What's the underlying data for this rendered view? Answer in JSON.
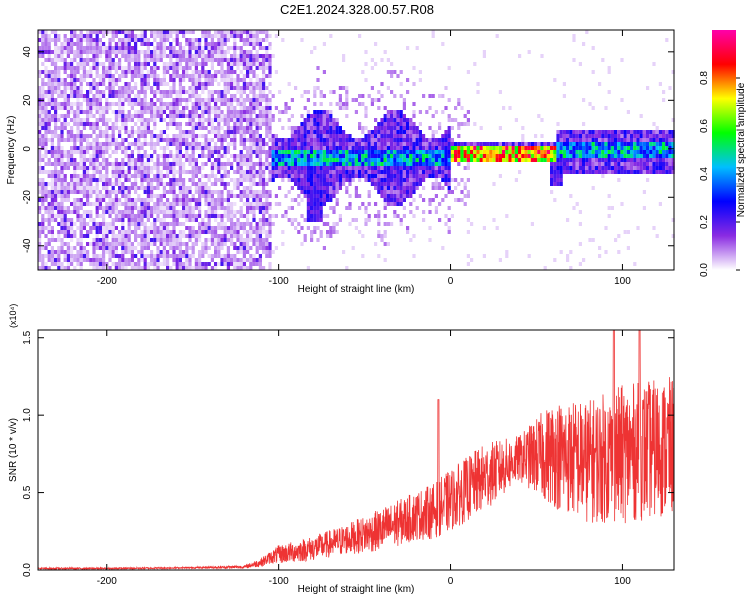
{
  "title": "C2E1.2024.328.00.57.R08",
  "colors": {
    "snr_line": "#ee3333",
    "spec_dense": "#7a2ee8",
    "spec_light": "#cdb6f5",
    "spec_bg": "#ffffff"
  },
  "chart_data": [
    {
      "type": "heatmap",
      "name": "spectrogram",
      "xlabel": "Height of straight line (km)",
      "ylabel": "Frequency (Hz)",
      "xlim": [
        -240,
        130
      ],
      "ylim": [
        -50,
        49
      ],
      "xticks": [
        -200,
        -100,
        0,
        100
      ],
      "yticks": [
        -40,
        -20,
        0,
        20,
        40
      ],
      "colorbar": {
        "label": "Normalized spectral amplitude",
        "range": [
          0.0,
          1.0
        ],
        "ticks": [
          "0.0",
          "0.2",
          "0.4",
          "0.6",
          "0.8"
        ],
        "colormap": [
          "#ffffff",
          "#8a2be2",
          "#0000ff",
          "#00bfff",
          "#00ff00",
          "#ffff00",
          "#ff0000",
          "#ff00aa"
        ]
      },
      "regions": [
        {
          "x": [
            -240,
            -105
          ],
          "freq": [
            -50,
            49
          ],
          "amplitude": 0.15,
          "kind": "noise"
        },
        {
          "x": [
            -105,
            0
          ],
          "freq": [
            -20,
            15
          ],
          "amplitude": 0.3,
          "kind": "signal"
        },
        {
          "x": [
            0,
            60
          ],
          "freq": [
            -3,
            3
          ],
          "amplitude": 0.9,
          "kind": "tone"
        },
        {
          "x": [
            60,
            130
          ],
          "freq": [
            -8,
            8
          ],
          "amplitude": 0.4,
          "kind": "signal"
        }
      ],
      "spikes": [
        {
          "x": -80,
          "freq": -30
        },
        {
          "x": 60,
          "freq": -15
        }
      ]
    },
    {
      "type": "line",
      "name": "snr",
      "xlabel": "Height of straight line (km)",
      "ylabel": "SNR (10 * v/v)",
      "multiplier": "(x10⁴)",
      "xlim": [
        -240,
        130
      ],
      "ylim": [
        0,
        1.55
      ],
      "xticks": [
        -200,
        -100,
        0,
        100
      ],
      "yticks": [
        0.0,
        0.5,
        1.0,
        1.5
      ],
      "ytick_labels": [
        "0.0",
        "0.5",
        "1.0",
        "1.5"
      ],
      "series": [
        {
          "x": [
            -240,
            -200,
            -150,
            -120,
            -110,
            -105,
            -100,
            -80,
            -60,
            -40,
            -20,
            -10,
            0,
            20,
            40,
            60,
            80,
            100,
            130
          ],
          "mean": [
            0.01,
            0.01,
            0.015,
            0.02,
            0.05,
            0.08,
            0.1,
            0.14,
            0.2,
            0.26,
            0.35,
            0.38,
            0.45,
            0.6,
            0.72,
            0.75,
            0.7,
            0.75,
            0.8
          ],
          "spread": [
            0.005,
            0.005,
            0.005,
            0.01,
            0.03,
            0.04,
            0.06,
            0.08,
            0.1,
            0.14,
            0.16,
            0.18,
            0.2,
            0.22,
            0.15,
            0.35,
            0.4,
            0.45,
            0.45
          ]
        }
      ],
      "spikes": [
        {
          "x": -7,
          "y": 1.1
        },
        {
          "x": 95,
          "y": 1.55
        },
        {
          "x": 110,
          "y": 1.55
        }
      ]
    }
  ]
}
